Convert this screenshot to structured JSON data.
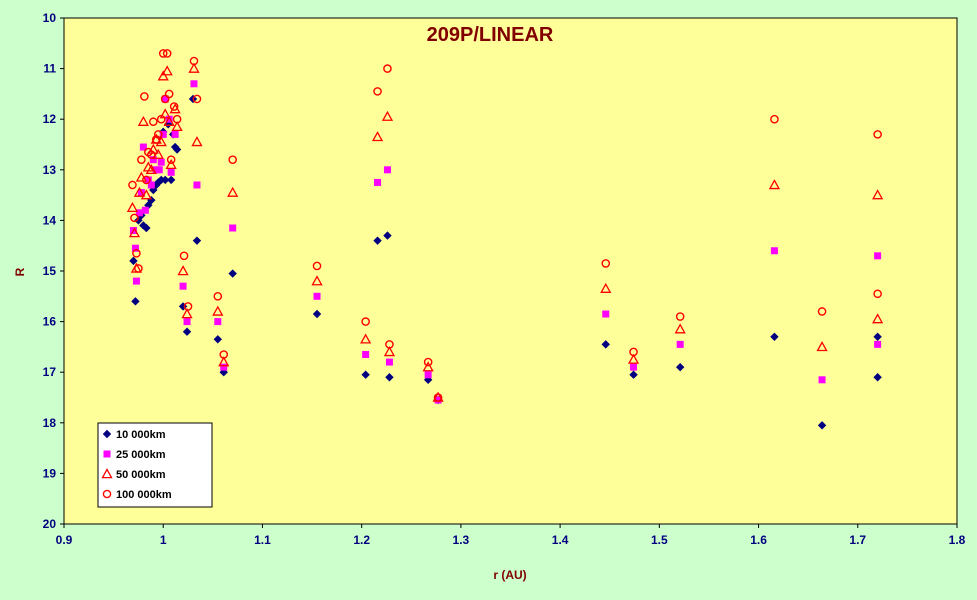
{
  "chart_data": {
    "type": "scatter",
    "title": "209P/LINEAR",
    "xlabel": "r (AU)",
    "ylabel": "R",
    "xlim": [
      0.9,
      1.8
    ],
    "ylim": [
      10,
      20
    ],
    "y_inverted": true,
    "x_ticks": [
      "0.9",
      "1",
      "1.1",
      "1.2",
      "1.3",
      "1.4",
      "1.5",
      "1.6",
      "1.7",
      "1.8"
    ],
    "y_ticks": [
      "10",
      "11",
      "12",
      "13",
      "14",
      "15",
      "16",
      "17",
      "18",
      "19",
      "20"
    ],
    "grid": false,
    "legend_position": "bottom-left",
    "colors": {
      "plot_background": "#ffff99",
      "page_background": "#ccffcc",
      "s1": "#000080",
      "s2": "#ff00ff",
      "s3": "#ff0000",
      "s4": "#ff0000"
    },
    "series": [
      {
        "name": "10 000km",
        "marker": "diamond",
        "points": [
          [
            0.97,
            14.8
          ],
          [
            0.972,
            15.6
          ],
          [
            0.975,
            14.0
          ],
          [
            0.978,
            13.9
          ],
          [
            0.98,
            14.1
          ],
          [
            0.983,
            14.15
          ],
          [
            0.985,
            13.7
          ],
          [
            0.988,
            13.6
          ],
          [
            0.99,
            13.4
          ],
          [
            0.993,
            13.3
          ],
          [
            0.995,
            13.25
          ],
          [
            0.998,
            13.2
          ],
          [
            1.0,
            12.25
          ],
          [
            1.002,
            13.2
          ],
          [
            1.005,
            12.1
          ],
          [
            1.008,
            13.2
          ],
          [
            1.01,
            12.3
          ],
          [
            1.012,
            12.55
          ],
          [
            1.014,
            12.6
          ],
          [
            1.02,
            15.7
          ],
          [
            1.024,
            16.2
          ],
          [
            1.03,
            11.6
          ],
          [
            1.034,
            14.4
          ],
          [
            1.055,
            16.35
          ],
          [
            1.061,
            17.0
          ],
          [
            1.07,
            15.05
          ],
          [
            1.155,
            15.85
          ],
          [
            1.204,
            17.05
          ],
          [
            1.216,
            14.4
          ],
          [
            1.226,
            14.3
          ],
          [
            1.228,
            17.1
          ],
          [
            1.267,
            17.15
          ],
          [
            1.277,
            17.55
          ],
          [
            1.446,
            16.45
          ],
          [
            1.474,
            17.05
          ],
          [
            1.521,
            16.9
          ],
          [
            1.616,
            16.3
          ],
          [
            1.664,
            18.05
          ],
          [
            1.72,
            16.3
          ],
          [
            1.72,
            17.1
          ]
        ]
      },
      {
        "name": "25 000km",
        "marker": "square",
        "points": [
          [
            0.97,
            14.2
          ],
          [
            0.972,
            14.55
          ],
          [
            0.973,
            15.2
          ],
          [
            0.976,
            13.85
          ],
          [
            0.978,
            13.45
          ],
          [
            0.98,
            12.55
          ],
          [
            0.982,
            13.8
          ],
          [
            0.985,
            13.2
          ],
          [
            0.988,
            13.3
          ],
          [
            0.99,
            12.8
          ],
          [
            0.993,
            13.0
          ],
          [
            0.996,
            13.0
          ],
          [
            0.998,
            12.85
          ],
          [
            1.0,
            12.3
          ],
          [
            1.002,
            11.6
          ],
          [
            1.006,
            12.0
          ],
          [
            1.008,
            13.05
          ],
          [
            1.012,
            12.3
          ],
          [
            1.02,
            15.3
          ],
          [
            1.024,
            16.0
          ],
          [
            1.031,
            11.3
          ],
          [
            1.034,
            13.3
          ],
          [
            1.055,
            16.0
          ],
          [
            1.061,
            16.9
          ],
          [
            1.07,
            14.15
          ],
          [
            1.155,
            15.5
          ],
          [
            1.204,
            16.65
          ],
          [
            1.216,
            13.25
          ],
          [
            1.226,
            13.0
          ],
          [
            1.228,
            16.8
          ],
          [
            1.267,
            17.05
          ],
          [
            1.277,
            17.55
          ],
          [
            1.446,
            15.85
          ],
          [
            1.474,
            16.9
          ],
          [
            1.521,
            16.45
          ],
          [
            1.616,
            14.6
          ],
          [
            1.664,
            17.15
          ],
          [
            1.72,
            14.7
          ],
          [
            1.72,
            16.45
          ]
        ]
      },
      {
        "name": "50 000km",
        "marker": "triangle",
        "points": [
          [
            0.969,
            13.75
          ],
          [
            0.971,
            14.25
          ],
          [
            0.973,
            14.95
          ],
          [
            0.976,
            13.45
          ],
          [
            0.978,
            13.15
          ],
          [
            0.98,
            12.05
          ],
          [
            0.983,
            13.5
          ],
          [
            0.985,
            12.95
          ],
          [
            0.988,
            13.0
          ],
          [
            0.99,
            12.6
          ],
          [
            0.993,
            12.4
          ],
          [
            0.995,
            12.7
          ],
          [
            0.998,
            12.45
          ],
          [
            1.0,
            11.15
          ],
          [
            1.002,
            11.9
          ],
          [
            1.004,
            11.05
          ],
          [
            1.006,
            12.05
          ],
          [
            1.008,
            12.9
          ],
          [
            1.012,
            11.8
          ],
          [
            1.014,
            12.15
          ],
          [
            1.02,
            15.0
          ],
          [
            1.024,
            15.85
          ],
          [
            1.031,
            11.0
          ],
          [
            1.034,
            12.45
          ],
          [
            1.055,
            15.8
          ],
          [
            1.061,
            16.8
          ],
          [
            1.07,
            13.45
          ],
          [
            1.155,
            15.2
          ],
          [
            1.204,
            16.35
          ],
          [
            1.216,
            12.35
          ],
          [
            1.226,
            11.95
          ],
          [
            1.228,
            16.6
          ],
          [
            1.267,
            16.9
          ],
          [
            1.277,
            17.5
          ],
          [
            1.446,
            15.35
          ],
          [
            1.474,
            16.75
          ],
          [
            1.521,
            16.15
          ],
          [
            1.616,
            13.3
          ],
          [
            1.664,
            16.5
          ],
          [
            1.72,
            13.5
          ],
          [
            1.72,
            15.95
          ]
        ]
      },
      {
        "name": "100 000km",
        "marker": "circle",
        "points": [
          [
            0.969,
            13.3
          ],
          [
            0.971,
            13.95
          ],
          [
            0.973,
            14.65
          ],
          [
            0.975,
            14.95
          ],
          [
            0.978,
            12.8
          ],
          [
            0.981,
            11.55
          ],
          [
            0.983,
            13.2
          ],
          [
            0.985,
            12.65
          ],
          [
            0.988,
            12.7
          ],
          [
            0.99,
            12.05
          ],
          [
            0.993,
            12.4
          ],
          [
            0.995,
            12.3
          ],
          [
            0.998,
            12.0
          ],
          [
            1.0,
            10.7
          ],
          [
            1.002,
            11.6
          ],
          [
            1.004,
            10.7
          ],
          [
            1.006,
            11.5
          ],
          [
            1.008,
            12.8
          ],
          [
            1.011,
            11.75
          ],
          [
            1.014,
            12.0
          ],
          [
            1.021,
            14.7
          ],
          [
            1.025,
            15.7
          ],
          [
            1.031,
            10.85
          ],
          [
            1.034,
            11.6
          ],
          [
            1.055,
            15.5
          ],
          [
            1.061,
            16.65
          ],
          [
            1.07,
            12.8
          ],
          [
            1.155,
            14.9
          ],
          [
            1.204,
            16.0
          ],
          [
            1.216,
            11.45
          ],
          [
            1.226,
            11.0
          ],
          [
            1.228,
            16.45
          ],
          [
            1.267,
            16.8
          ],
          [
            1.277,
            17.5
          ],
          [
            1.446,
            14.85
          ],
          [
            1.474,
            16.6
          ],
          [
            1.521,
            15.9
          ],
          [
            1.616,
            12.0
          ],
          [
            1.664,
            15.8
          ],
          [
            1.72,
            12.3
          ],
          [
            1.72,
            15.45
          ]
        ]
      }
    ]
  }
}
